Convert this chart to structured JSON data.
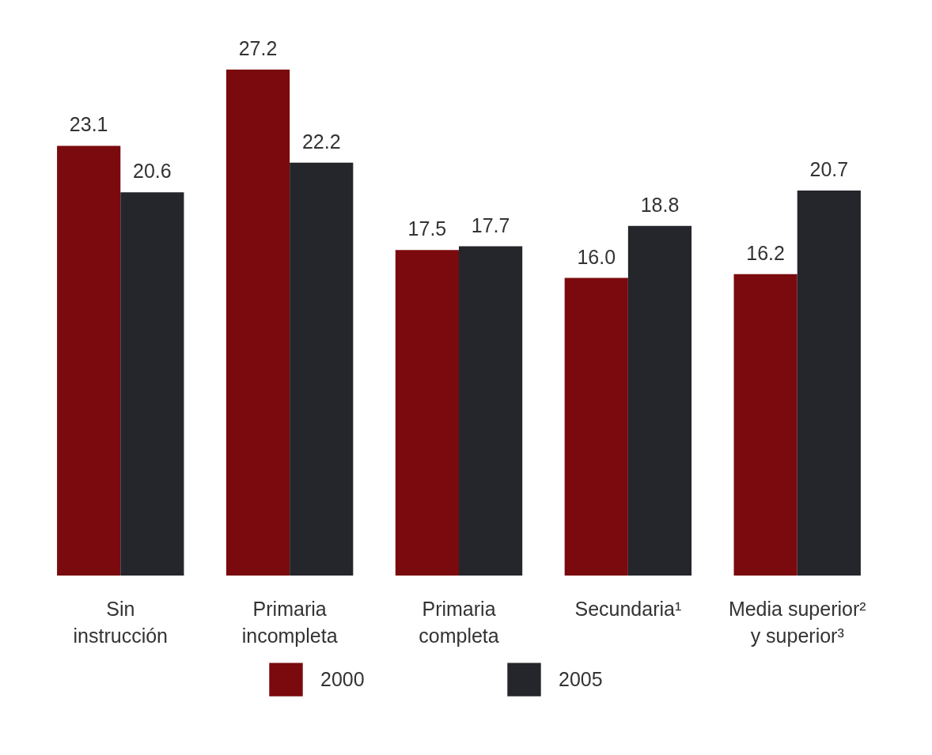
{
  "chart_data": {
    "type": "bar",
    "categories": [
      "Sin\ninstrucción",
      "Primaria\nincompleta",
      "Primaria\ncompleta",
      "Secundaria¹",
      "Media superior²\ny superior³"
    ],
    "series": [
      {
        "name": "2000",
        "color": "#7a0a0e",
        "values": [
          23.1,
          27.2,
          17.5,
          16.0,
          16.2
        ],
        "value_labels": [
          "23.1",
          "27.2",
          "17.5",
          "16.0",
          "16.2"
        ]
      },
      {
        "name": "2005",
        "color": "#25262b",
        "values": [
          20.6,
          22.2,
          17.7,
          18.8,
          20.7
        ],
        "value_labels": [
          "20.6",
          "22.2",
          "17.7",
          "18.8",
          "20.7"
        ]
      }
    ],
    "legend": "bottom",
    "grid": false
  }
}
